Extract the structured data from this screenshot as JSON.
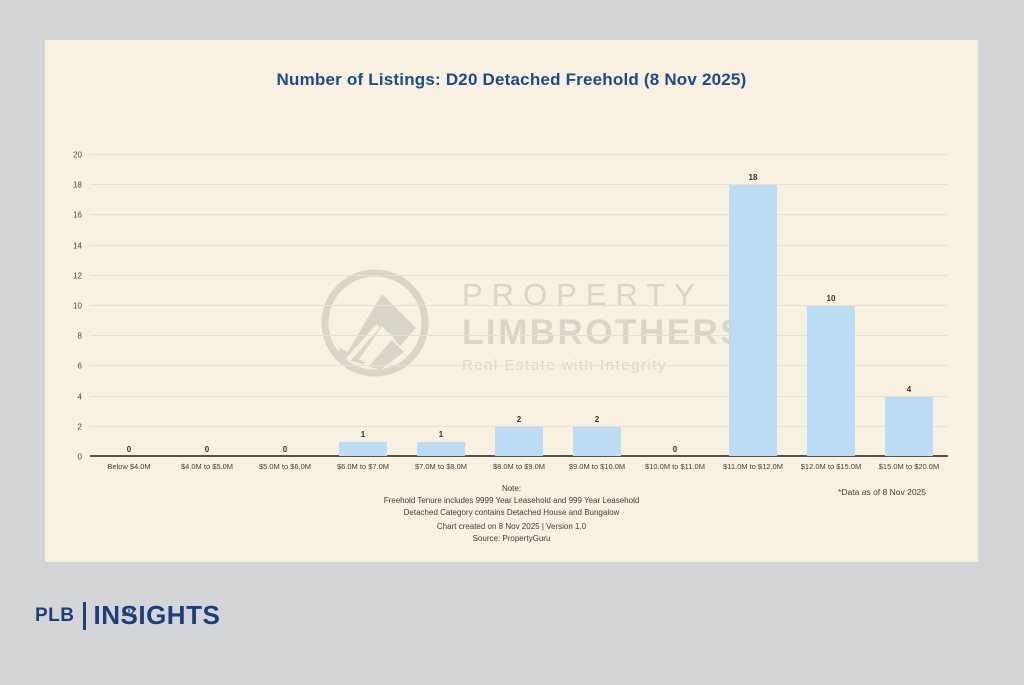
{
  "page": {
    "background_color": "#d3d5d7",
    "card_background_color": "#f8f1e2"
  },
  "chart_data": {
    "type": "bar",
    "title": "Number of Listings: D20 Detached Freehold (8 Nov 2025)",
    "title_color": "#1e4a8c",
    "categories": [
      "Below $4.0M",
      "$4.0M to $5.0M",
      "$5.0M to $6.0M",
      "$6.0M to $7.0M",
      "$7.0M to $8.0M",
      "$8.0M to $9.0M",
      "$9.0M to $10.0M",
      "$10.0M to $11.0M",
      "$11.0M to $12.0M",
      "$12.0M to $15.0M",
      "$15.0M to $20.0M"
    ],
    "values": [
      0,
      0,
      0,
      1,
      1,
      2,
      2,
      0,
      18,
      10,
      4
    ],
    "xlabel": "",
    "ylabel": "",
    "ylim": [
      0,
      20
    ],
    "yticks": [
      0,
      2,
      4,
      6,
      8,
      10,
      12,
      14,
      16,
      18,
      20
    ],
    "grid": "horizontal",
    "legend_position": "none",
    "value_labels": true,
    "bar_color": "#bdddf5",
    "annotation": "*Data as of 8 Nov 2025"
  },
  "watermark": {
    "logo_icon": "limbrothers-mountain-circle",
    "line1": "PROPERTY",
    "line2": "LIMBROTHERS",
    "tagline": "Real Estate with Integrity",
    "color": "#d9d5c8"
  },
  "notes": {
    "heading": "Note:",
    "line1": "Freehold Tenure includes 9999 Year Leasehold and 999 Year Leasehold",
    "line2": "Detached Category contains Detached House and Bungalow",
    "line3": "Chart created on 8 Nov 2025 | Version 1.0",
    "line4": "Source: PropertyGuru",
    "data_as_of": "*Data as of 8 Nov 2025"
  },
  "footer": {
    "plb": "PLB",
    "insights_prefix": "IN",
    "insights_s": "S",
    "insights_suffix": "IGHTS",
    "logo_color": "#1b3e7d"
  }
}
